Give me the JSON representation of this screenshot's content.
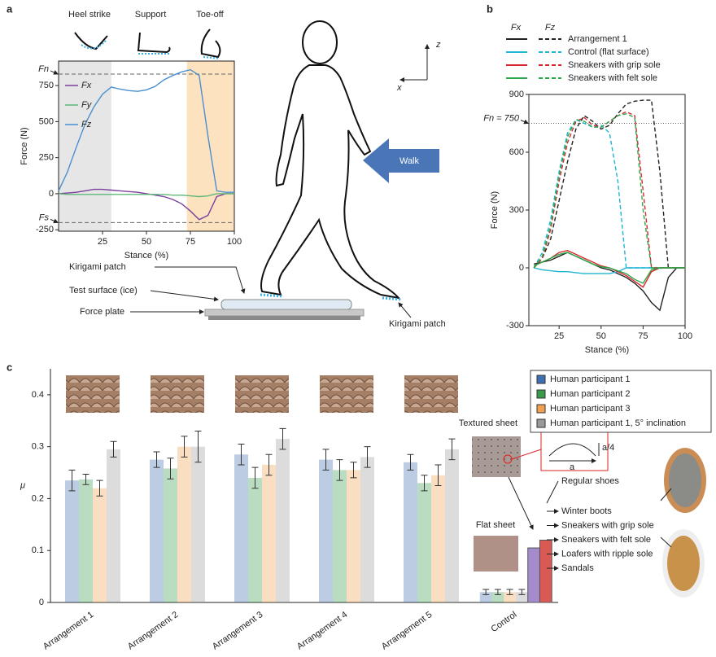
{
  "panels": [
    "a",
    "b",
    "c"
  ],
  "diagram": {
    "phases": [
      "Heel strike",
      "Support",
      "Toe-off"
    ],
    "labels": [
      "Kirigami patch",
      "Test surface (ice)",
      "Force plate",
      "Kirigami patch"
    ],
    "walk": "Walk",
    "axes": [
      "z",
      "x"
    ]
  },
  "chart_data": [
    {
      "type": "line",
      "x_label": "Stance (%)",
      "y_label": "Force (N)",
      "xlim": [
        0,
        100
      ],
      "xticks": [
        25,
        50,
        75,
        100
      ],
      "ylim": [
        -260,
        920
      ],
      "yticks": [
        -250,
        0,
        250,
        500,
        750
      ],
      "spans": [
        {
          "range": [
            0,
            30
          ],
          "color": "#e6e6e6"
        },
        {
          "range": [
            73,
            100
          ],
          "color": "#fde2bf"
        }
      ],
      "reference_lines": [
        {
          "label": "Fn",
          "value": 830
        },
        {
          "label": "Fs",
          "value": -200
        }
      ],
      "x": [
        0,
        5,
        10,
        15,
        20,
        25,
        30,
        35,
        40,
        45,
        50,
        55,
        60,
        65,
        70,
        75,
        80,
        85,
        90,
        95,
        100
      ],
      "series": [
        {
          "name": "Fx",
          "color": "#7b3f9e",
          "values": [
            0,
            5,
            10,
            20,
            30,
            30,
            25,
            20,
            15,
            10,
            0,
            -10,
            -20,
            -40,
            -70,
            -120,
            -180,
            -150,
            -20,
            0,
            0
          ]
        },
        {
          "name": "Fy",
          "color": "#5fb87a",
          "values": [
            0,
            -5,
            -5,
            -5,
            -5,
            -5,
            -5,
            -5,
            -5,
            -5,
            -5,
            -5,
            -5,
            -10,
            -10,
            -15,
            -20,
            -15,
            0,
            0,
            0
          ]
        },
        {
          "name": "Fz",
          "color": "#4a8fd0",
          "values": [
            20,
            150,
            320,
            480,
            600,
            690,
            740,
            725,
            715,
            710,
            720,
            745,
            790,
            820,
            845,
            860,
            820,
            400,
            20,
            10,
            10
          ]
        }
      ]
    },
    {
      "type": "line",
      "x_label": "Stance (%)",
      "y_label": "Force (N)",
      "legend_headers": [
        "Fx",
        "Fz"
      ],
      "xlim": [
        7,
        100
      ],
      "xticks": [
        25,
        50,
        75,
        100
      ],
      "ylim": [
        -300,
        900
      ],
      "yticks": [
        -300,
        0,
        300,
        600,
        900
      ],
      "reference_lines": [
        {
          "label": "Fn = 750",
          "value": 750
        }
      ],
      "x": [
        10,
        15,
        20,
        25,
        30,
        35,
        40,
        45,
        50,
        55,
        60,
        65,
        70,
        75,
        80,
        85,
        90,
        95,
        100
      ],
      "series": [
        {
          "name": "Arrangement 1",
          "color": "#222222",
          "fx": [
            20,
            30,
            40,
            60,
            80,
            60,
            40,
            20,
            0,
            -10,
            -30,
            -50,
            -80,
            -120,
            -180,
            -220,
            -50,
            0,
            0
          ],
          "fz": [
            0,
            50,
            150,
            350,
            550,
            720,
            790,
            760,
            720,
            740,
            800,
            850,
            865,
            870,
            870,
            500,
            0,
            0,
            0
          ]
        },
        {
          "name": "Control (flat surface)",
          "color": "#1fb5d4",
          "fx": [
            0,
            -10,
            -15,
            -20,
            -20,
            -25,
            -30,
            -30,
            -30,
            -30,
            -20,
            0,
            0,
            0,
            0,
            0,
            0,
            0,
            0
          ],
          "fz": [
            0,
            80,
            250,
            500,
            700,
            770,
            750,
            730,
            740,
            700,
            450,
            0,
            0,
            0,
            0,
            0,
            0,
            0,
            0
          ]
        },
        {
          "name": "Sneakers with grip sole",
          "color": "#d9262d",
          "fx": [
            10,
            30,
            50,
            80,
            90,
            70,
            50,
            30,
            10,
            0,
            -20,
            -40,
            -70,
            -100,
            -20,
            0,
            0,
            0,
            0
          ],
          "fz": [
            0,
            50,
            200,
            450,
            650,
            760,
            780,
            740,
            730,
            760,
            790,
            810,
            790,
            400,
            0,
            0,
            0,
            0,
            0
          ]
        },
        {
          "name": "Sneakers with felt sole",
          "color": "#2aa84a",
          "fx": [
            10,
            30,
            50,
            70,
            80,
            60,
            40,
            20,
            5,
            0,
            -15,
            -30,
            -60,
            -80,
            -10,
            0,
            0,
            0,
            0
          ],
          "fz": [
            0,
            60,
            220,
            480,
            680,
            770,
            760,
            730,
            730,
            760,
            790,
            800,
            780,
            300,
            0,
            0,
            0,
            0,
            0
          ]
        }
      ]
    },
    {
      "type": "bar",
      "y_label": "μ",
      "ylim": [
        0,
        0.45
      ],
      "yticks": [
        0,
        0.1,
        0.2,
        0.3,
        0.4
      ],
      "categories": [
        "Arrangement 1",
        "Arrangement 2",
        "Arrangement 3",
        "Arrangement 4",
        "Arrangement 5",
        "Control"
      ],
      "series": [
        {
          "name": "Human participant 1",
          "color": "#3e6fb0",
          "values": [
            0.235,
            0.275,
            0.285,
            0.275,
            0.27,
            0.02
          ],
          "errors": [
            0.02,
            0.015,
            0.02,
            0.02,
            0.015,
            0.005
          ]
        },
        {
          "name": "Human participant 2",
          "color": "#3a9a4a",
          "values": [
            0.237,
            0.258,
            0.24,
            0.255,
            0.23,
            0.02
          ],
          "errors": [
            0.01,
            0.02,
            0.02,
            0.02,
            0.015,
            0.005
          ]
        },
        {
          "name": "Human participant 3",
          "color": "#f0a050",
          "values": [
            0.22,
            0.3,
            0.265,
            0.255,
            0.245,
            0.02
          ],
          "errors": [
            0.015,
            0.02,
            0.02,
            0.015,
            0.02,
            0.005
          ]
        },
        {
          "name": "Human participant 1, 5° inclination",
          "color": "#9a9a9a",
          "values": [
            0.295,
            0.3,
            0.315,
            0.28,
            0.295,
            0.02
          ],
          "errors": [
            0.015,
            0.03,
            0.02,
            0.02,
            0.02,
            0.005
          ]
        }
      ],
      "regular_shoes": {
        "name": "Regular shoes",
        "values": [
          0.105,
          0.12
        ],
        "colors": [
          "#a58bcc",
          "#d95a55"
        ]
      },
      "shoes": [
        "Winter boots",
        "Sneakers with grip sole",
        "Sneakers with felt sole",
        "Loafers with ripple sole",
        "Sandals"
      ],
      "insets": {
        "textured": "Textured sheet",
        "flat": "Flat sheet",
        "a": "a",
        "a4": "a/4"
      }
    }
  ]
}
